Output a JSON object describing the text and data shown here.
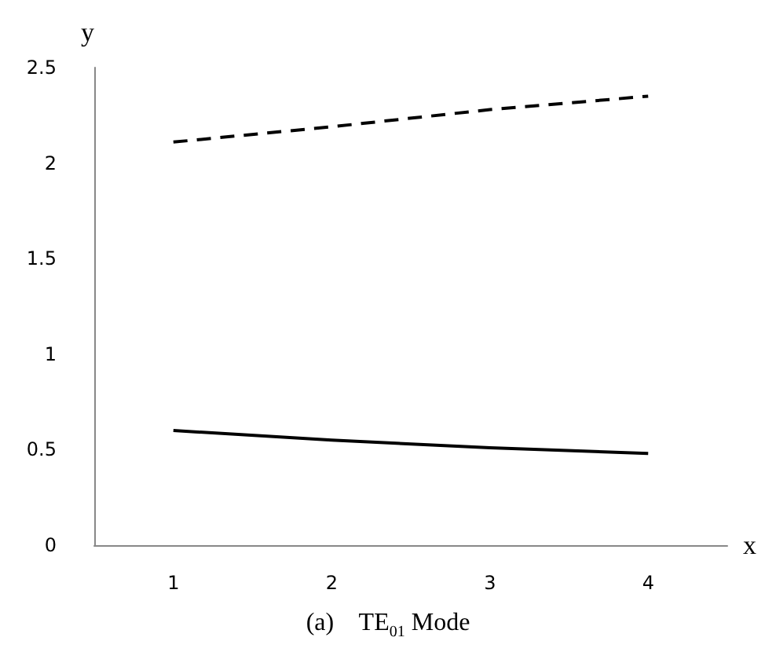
{
  "chart_data": {
    "type": "line",
    "title": "(a)    TE$_{01}$ Mode",
    "xlabel": "x",
    "ylabel": "y",
    "categories": [
      "1",
      "2",
      "3",
      "4"
    ],
    "series": [
      {
        "color": "#000000",
        "line_style": "dashed",
        "values": [
          2.11,
          2.19,
          2.28,
          2.35
        ]
      },
      {
        "color": "#000000",
        "line_style": "solid",
        "values": [
          0.6,
          0.55,
          0.51,
          0.48
        ]
      }
    ],
    "ylim": [
      0,
      2.5
    ],
    "yticks": [
      0,
      0.5,
      1,
      1.5,
      2,
      2.5
    ],
    "grid": false,
    "marker": "none"
  }
}
